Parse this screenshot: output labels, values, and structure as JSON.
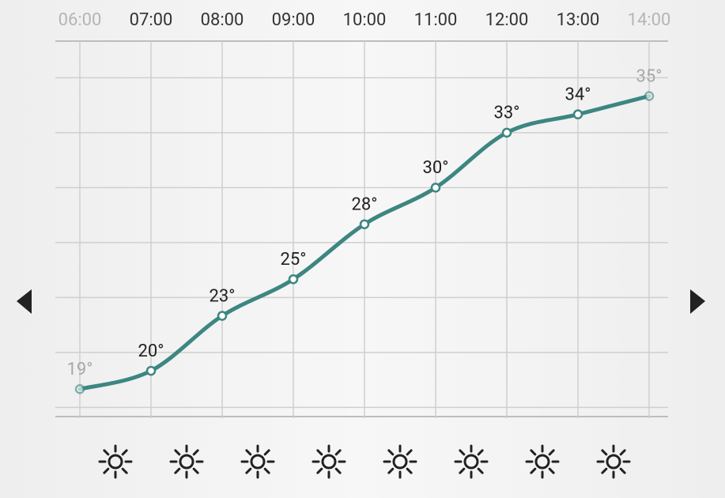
{
  "chart_data": {
    "type": "line",
    "categories": [
      "06:00",
      "07:00",
      "08:00",
      "09:00",
      "10:00",
      "11:00",
      "12:00",
      "13:00",
      "14:00"
    ],
    "values": [
      19,
      20,
      23,
      25,
      28,
      30,
      33,
      34,
      35
    ],
    "value_labels": [
      "19°",
      "20°",
      "23°",
      "25°",
      "28°",
      "30°",
      "33°",
      "34°",
      "35°"
    ],
    "color": "#3d8681",
    "ylim": [
      17.5,
      38
    ],
    "yticks": [
      18,
      21,
      24,
      27,
      30,
      33,
      36
    ],
    "grid": true
  }
}
